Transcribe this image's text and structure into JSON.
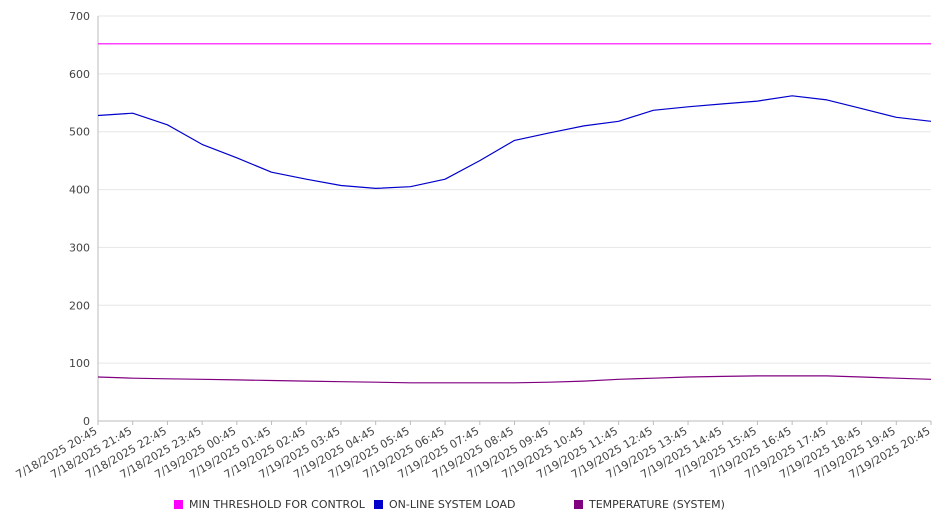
{
  "chart_data": {
    "type": "line",
    "title": "",
    "xlabel": "",
    "ylabel": "",
    "ylim": [
      0,
      700
    ],
    "yticks": [
      "0",
      "100",
      "200",
      "300",
      "400",
      "500",
      "600",
      "700"
    ],
    "grid": true,
    "legend_position": "bottom",
    "x": [
      "7/18/2025 20:45",
      "7/18/2025 21:45",
      "7/18/2025 22:45",
      "7/18/2025 23:45",
      "7/19/2025 00:45",
      "7/19/2025 01:45",
      "7/19/2025 02:45",
      "7/19/2025 03:45",
      "7/19/2025 04:45",
      "7/19/2025 05:45",
      "7/19/2025 06:45",
      "7/19/2025 07:45",
      "7/19/2025 08:45",
      "7/19/2025 09:45",
      "7/19/2025 10:45",
      "7/19/2025 11:45",
      "7/19/2025 12:45",
      "7/19/2025 13:45",
      "7/19/2025 14:45",
      "7/19/2025 15:45",
      "7/19/2025 16:45",
      "7/19/2025 17:45",
      "7/19/2025 18:45",
      "7/19/2025 19:45",
      "7/19/2025 20:45"
    ],
    "series": [
      {
        "name": "MIN THRESHOLD FOR CONTROL",
        "color": "#ff00ff",
        "values": [
          652,
          652,
          652,
          652,
          652,
          652,
          652,
          652,
          652,
          652,
          652,
          652,
          652,
          652,
          652,
          652,
          652,
          652,
          652,
          652,
          652,
          652,
          652,
          652,
          652
        ]
      },
      {
        "name": "ON-LINE SYSTEM LOAD",
        "color": "#0000cc",
        "values": [
          528,
          532,
          512,
          478,
          455,
          430,
          418,
          407,
          402,
          405,
          418,
          450,
          485,
          498,
          510,
          518,
          537,
          543,
          548,
          553,
          562,
          555,
          540,
          525,
          518
        ]
      },
      {
        "name": "TEMPERATURE (SYSTEM)",
        "color": "#800080",
        "values": [
          76,
          74,
          73,
          72,
          71,
          70,
          69,
          68,
          67,
          66,
          66,
          66,
          66,
          67,
          69,
          72,
          74,
          76,
          77,
          78,
          78,
          78,
          76,
          74,
          72
        ]
      }
    ]
  }
}
